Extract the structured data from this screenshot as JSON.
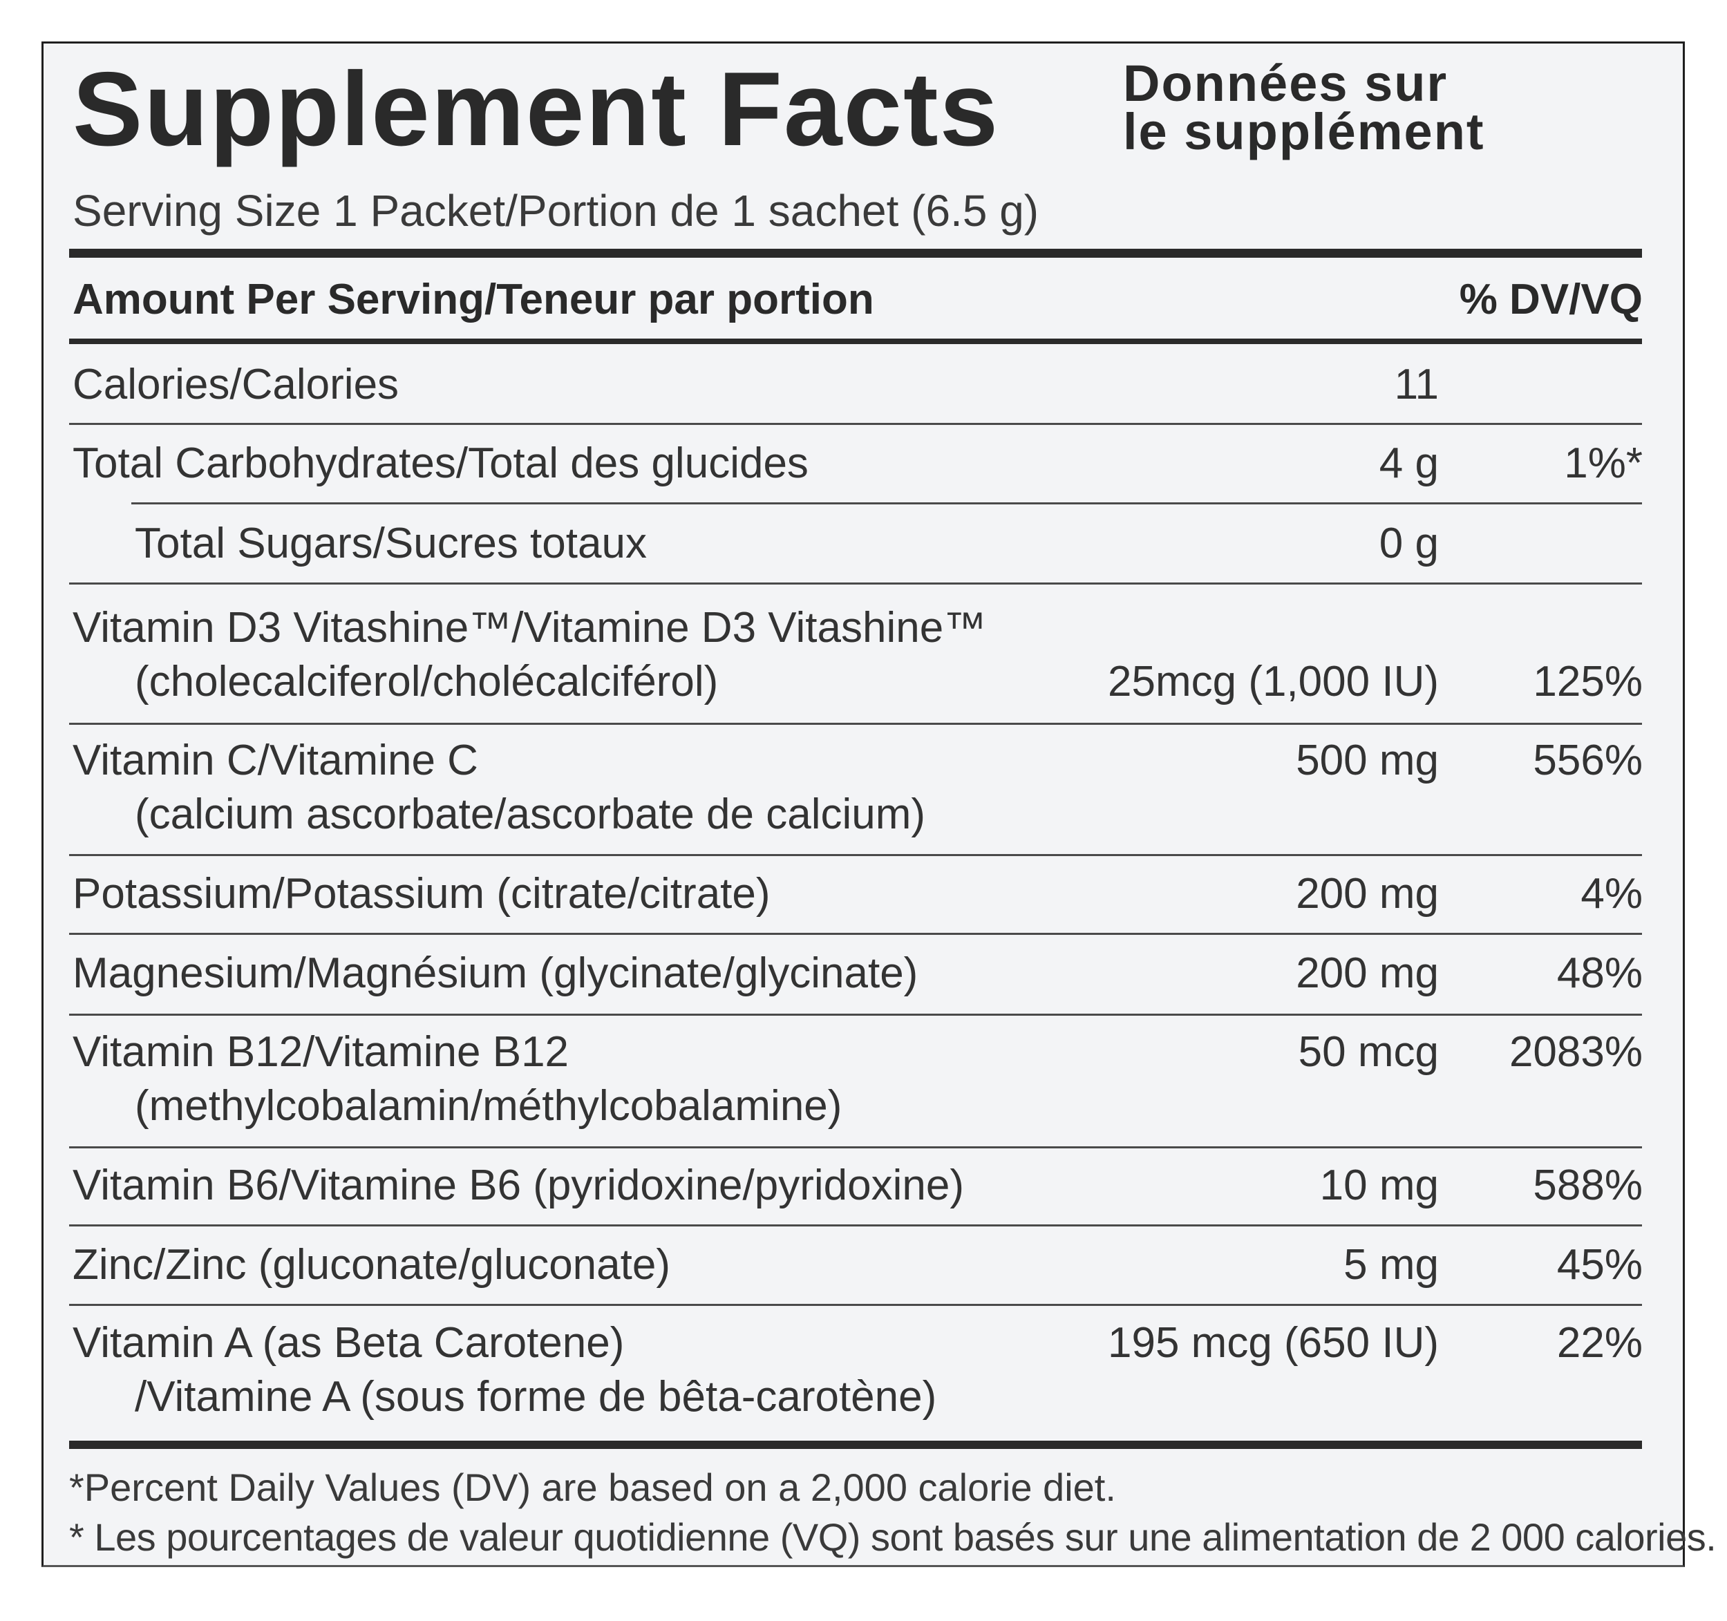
{
  "title": "Supplement Facts",
  "title_fr_line1": "Données sur",
  "title_fr_line2": "le supplément",
  "serving_size": "Serving Size 1 Packet/Portion de 1 sachet (6.5 g)",
  "header": {
    "amount_label": "Amount Per Serving/Teneur par portion",
    "dv_label": "% DV/VQ"
  },
  "rows": [
    {
      "label1": "Calories/Calories",
      "label2": "",
      "amount": "11",
      "dv": ""
    },
    {
      "label1": "Total Carbohydrates/Total des glucides",
      "label2": "",
      "amount": "4 g",
      "dv": "1%*"
    },
    {
      "label1": "Total Sugars/Sucres totaux",
      "label2": "",
      "amount": "0 g",
      "dv": ""
    },
    {
      "label1": "Vitamin D3 Vitashine™/Vitamine D3 Vitashine™",
      "label2": "(cholecalciferol/cholécalciférol)",
      "amount": "25mcg (1,000 IU)",
      "dv": "125%"
    },
    {
      "label1": "Vitamin C/Vitamine C",
      "label2": "(calcium ascorbate/ascorbate de calcium)",
      "amount": "500 mg",
      "dv": "556%"
    },
    {
      "label1": "Potassium/Potassium (citrate/citrate)",
      "label2": "",
      "amount": "200 mg",
      "dv": "4%"
    },
    {
      "label1": "Magnesium/Magnésium (glycinate/glycinate)",
      "label2": "",
      "amount": "200 mg",
      "dv": "48%"
    },
    {
      "label1": "Vitamin B12/Vitamine B12",
      "label2": "(methylcobalamin/méthylcobalamine)",
      "amount": "50 mcg",
      "dv": "2083%"
    },
    {
      "label1": "Vitamin B6/Vitamine B6 (pyridoxine/pyridoxine)",
      "label2": "",
      "amount": "10 mg",
      "dv": "588%"
    },
    {
      "label1": "Zinc/Zinc (gluconate/gluconate)",
      "label2": "",
      "amount": "5 mg",
      "dv": "45%"
    },
    {
      "label1": "Vitamin A (as Beta Carotene)",
      "label2": "/Vitamine A (sous forme de bêta-carotène)",
      "amount": "195 mcg (650 IU)",
      "dv": "22%"
    }
  ],
  "footnote_en": "*Percent Daily Values (DV) are based on a 2,000 calorie diet.",
  "footnote_fr": "* Les pourcentages de valeur quotidienne (VQ) sont basés sur une alimentation de 2 000 calories."
}
